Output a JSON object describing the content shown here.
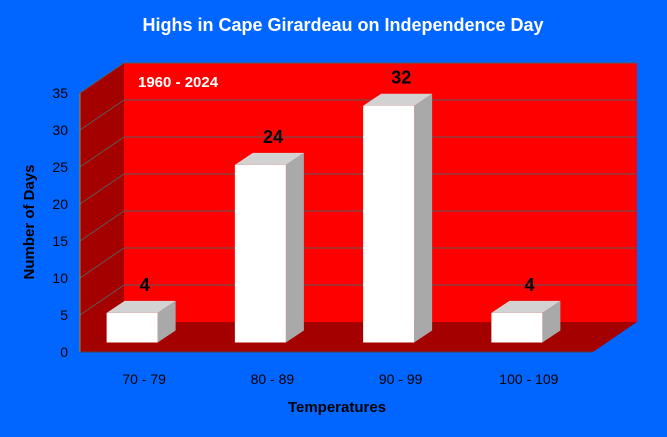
{
  "chart_data": {
    "type": "bar",
    "title": "Highs in Cape Girardeau on Independence Day",
    "annotation": "1960 - 2024",
    "xlabel": "Temperatures",
    "ylabel": "Number of Days",
    "categories": [
      "70 - 79",
      "80 - 89",
      "90 - 99",
      "100 - 109"
    ],
    "values": [
      4,
      24,
      32,
      4
    ],
    "data_labels": [
      "4",
      "24",
      "32",
      "4"
    ],
    "ylim": [
      0,
      35
    ],
    "yticks": [
      "0",
      "5",
      "10",
      "15",
      "20",
      "25",
      "30",
      "35"
    ],
    "grid": true,
    "legend": "none",
    "three_d": true,
    "colors": {
      "background": "#0066ff",
      "back_wall": "#ff0000",
      "side_wall": "#a50000",
      "floor": "#a50000",
      "bar_front": "#ffffff",
      "bar_side": "#a9a9a9",
      "bar_top": "#d2d2d2",
      "title_text": "#ffffff",
      "label_text": "#000000"
    }
  }
}
